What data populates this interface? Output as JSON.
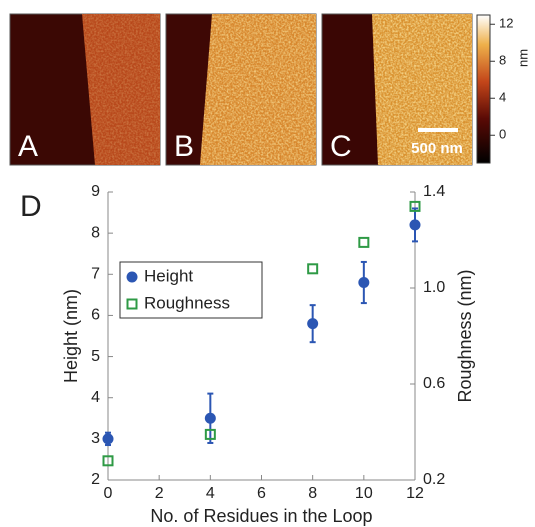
{
  "panels": [
    "A",
    "B",
    "C",
    "D"
  ],
  "scale_bar": "500 nm",
  "colorbar": {
    "label": "nm",
    "lim": [
      -3,
      13
    ],
    "ticks": [
      12,
      8,
      4,
      0
    ]
  },
  "chart_data": {
    "type": "scatter",
    "x_label": "No. of Residues in the Loop",
    "y_label": "Height (nm)",
    "y2_label": "Roughness (nm)",
    "x": [
      0,
      4,
      8,
      10,
      12
    ],
    "xlim": [
      0,
      12
    ],
    "xticks": [
      0,
      2,
      4,
      6,
      8,
      10,
      12
    ],
    "ylim": [
      2,
      9
    ],
    "yticks": [
      2,
      3,
      4,
      5,
      6,
      7,
      8,
      9
    ],
    "y2lim": [
      0.2,
      1.4
    ],
    "y2ticks": [
      0.2,
      0.6,
      {
        "value": 1,
        "label": "1.0"
      },
      1.4
    ],
    "legend": "upper left",
    "series": [
      {
        "name": "Height",
        "color": "#2b56b3",
        "marker": "circle",
        "values": [
          3.0,
          3.5,
          5.8,
          6.8,
          8.2
        ],
        "errors": [
          0.15,
          0.6,
          0.45,
          0.5,
          0.4
        ]
      },
      {
        "name": "Roughness",
        "color": "#2e9a45",
        "marker": "square",
        "axis": "y2",
        "values": [
          0.28,
          0.39,
          1.08,
          1.19,
          1.34
        ]
      }
    ]
  }
}
